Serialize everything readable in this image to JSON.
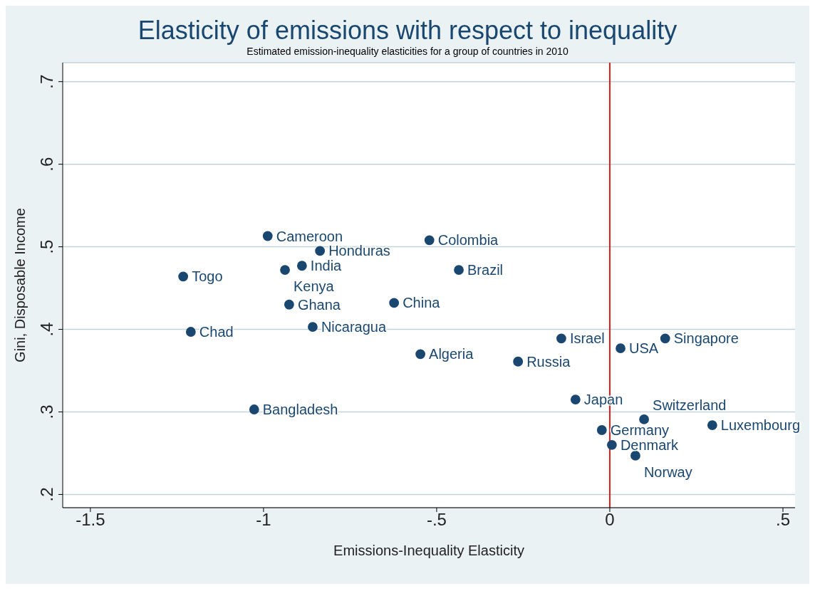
{
  "chart_data": {
    "type": "scatter",
    "title": "Elasticity of emissions with respect to inequality",
    "subtitle": "Estimated emission-inequality elasticities for a group of countries in 2010",
    "xlabel": "Emissions-Inequality Elasticity",
    "ylabel": "Gini, Disposable Income",
    "series": [
      {
        "color": "#1a476f",
        "x": [
          -1.232,
          -1.21,
          -0.988,
          -1.027,
          -0.938,
          -0.889,
          -0.837,
          -0.926,
          -0.858,
          -0.521,
          -0.436,
          -0.623,
          -0.547,
          -0.265,
          -0.14,
          0.031,
          0.16,
          -0.099,
          0.099,
          0.296,
          -0.023,
          0.006,
          0.074
        ],
        "values": [
          0.464,
          0.397,
          0.513,
          0.303,
          0.472,
          0.477,
          0.495,
          0.43,
          0.403,
          0.508,
          0.472,
          0.432,
          0.37,
          0.361,
          0.389,
          0.377,
          0.389,
          0.315,
          0.291,
          0.284,
          0.278,
          0.26,
          0.247
        ]
      }
    ],
    "annotations": [
      {
        "text": "Togo",
        "x": -1.232,
        "y": 0.464
      },
      {
        "text": "Chad",
        "x": -1.21,
        "y": 0.397
      },
      {
        "text": "Cameroon",
        "x": -0.988,
        "y": 0.513
      },
      {
        "text": "Bangladesh",
        "x": -1.027,
        "y": 0.303
      },
      {
        "text": "Kenya",
        "x": -0.938,
        "y": 0.472
      },
      {
        "text": "India",
        "x": -0.889,
        "y": 0.477
      },
      {
        "text": "Honduras",
        "x": -0.837,
        "y": 0.495
      },
      {
        "text": "Ghana",
        "x": -0.926,
        "y": 0.43
      },
      {
        "text": "Nicaragua",
        "x": -0.858,
        "y": 0.403
      },
      {
        "text": "Colombia",
        "x": -0.521,
        "y": 0.508
      },
      {
        "text": "Brazil",
        "x": -0.436,
        "y": 0.472
      },
      {
        "text": "China",
        "x": -0.623,
        "y": 0.432
      },
      {
        "text": "Algeria",
        "x": -0.547,
        "y": 0.37
      },
      {
        "text": "Russia",
        "x": -0.265,
        "y": 0.361
      },
      {
        "text": "Israel",
        "x": -0.14,
        "y": 0.389
      },
      {
        "text": "USA",
        "x": 0.031,
        "y": 0.377
      },
      {
        "text": "Singapore",
        "x": 0.16,
        "y": 0.389
      },
      {
        "text": "Japan",
        "x": -0.099,
        "y": 0.315
      },
      {
        "text": "Switzerland",
        "x": 0.099,
        "y": 0.291
      },
      {
        "text": "Luxembourg",
        "x": 0.296,
        "y": 0.284
      },
      {
        "text": "Germany",
        "x": -0.023,
        "y": 0.278
      },
      {
        "text": "Denmark",
        "x": 0.006,
        "y": 0.26
      },
      {
        "text": "Norway",
        "x": 0.074,
        "y": 0.247
      }
    ],
    "xlim": [
      -1.58,
      0.535
    ],
    "xticks": [
      {
        "value": -1.5,
        "label": "-1.5"
      },
      {
        "value": -1,
        "label": "-1"
      },
      {
        "value": -0.5,
        "label": "-.5"
      },
      {
        "value": 0,
        "label": "0"
      },
      {
        "value": 0.5,
        "label": ".5"
      }
    ],
    "ylim": [
      0.184,
      0.723
    ],
    "yticks": [
      {
        "value": 0.2,
        "label": ".2"
      },
      {
        "value": 0.3,
        "label": ".3"
      },
      {
        "value": 0.4,
        "label": ".4"
      },
      {
        "value": 0.5,
        "label": ".5"
      },
      {
        "value": 0.6,
        "label": ".6"
      },
      {
        "value": 0.7,
        "label": ".7"
      }
    ],
    "ref_lines": [
      {
        "axis": "x",
        "value": 0,
        "color": "#e31a1c"
      }
    ],
    "grid": "y",
    "marker": "circle"
  }
}
